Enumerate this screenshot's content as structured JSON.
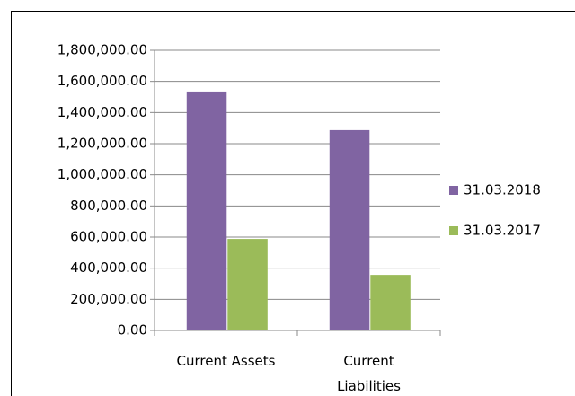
{
  "chart_data": {
    "type": "bar",
    "categories": [
      "Current Assets",
      "Current Liabilities"
    ],
    "series": [
      {
        "name": "31.03.2018",
        "color": "#8064a2",
        "values": [
          1535000,
          1287000
        ]
      },
      {
        "name": "31.03.2017",
        "color": "#9bbb59",
        "values": [
          588000,
          357000
        ]
      }
    ],
    "ylim": [
      0,
      1800000
    ],
    "yticks": [
      {
        "value": 0,
        "label": "0.00"
      },
      {
        "value": 200000,
        "label": "200,000.00"
      },
      {
        "value": 400000,
        "label": "400,000.00"
      },
      {
        "value": 600000,
        "label": "600,000.00"
      },
      {
        "value": 800000,
        "label": "800,000.00"
      },
      {
        "value": 1000000,
        "label": "1,000,000.00"
      },
      {
        "value": 1200000,
        "label": "1,200,000.00"
      },
      {
        "value": 1400000,
        "label": "1,400,000.00"
      },
      {
        "value": 1600000,
        "label": "1,600,000.00"
      },
      {
        "value": 1800000,
        "label": "1,800,000.00"
      }
    ],
    "grid": true,
    "legend": "right"
  }
}
